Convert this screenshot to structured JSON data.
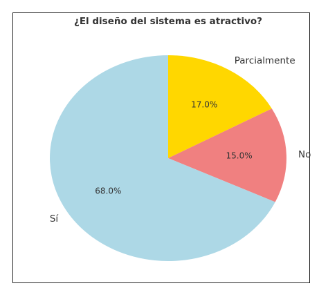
{
  "chart_data": {
    "type": "pie",
    "title": "¿El diseño del sistema es atractivo?",
    "categories": [
      "Parcialmente",
      "No",
      "Sí"
    ],
    "values": [
      17,
      15,
      68
    ],
    "value_labels": [
      "17.0%",
      "15.0%",
      "68.0%"
    ],
    "colors": [
      "#ffd700",
      "#f08080",
      "#add8e6"
    ]
  }
}
